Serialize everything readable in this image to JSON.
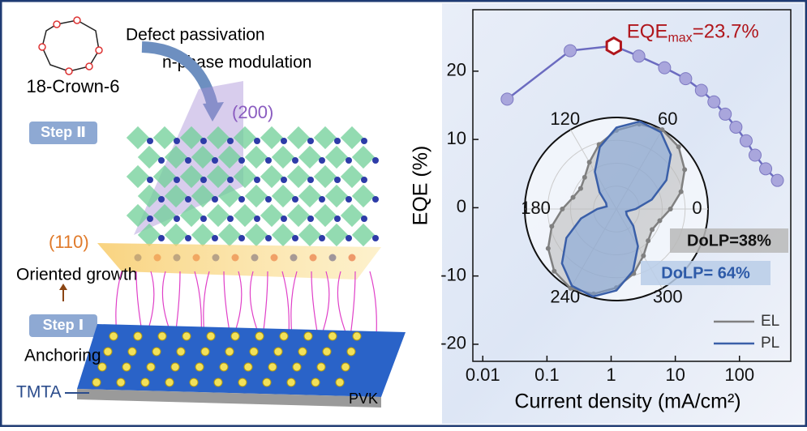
{
  "illustration": {
    "molecule": "18-Crown-6",
    "arrow_top": "Defect passivation",
    "arrow_bottom": "n-phase modulation",
    "step2": "Step Ⅱ",
    "plane200": "(200)",
    "plane110": "(110)",
    "growth": "Oriented growth",
    "step1": "Step Ⅰ",
    "anchoring": "Anchoring",
    "tmta": "TMTA",
    "substrate": "PVK"
  },
  "chart_data": [
    {
      "type": "line",
      "xlabel": "Current density (mA/cm²)",
      "ylabel": "EQE (%)",
      "x": [
        0.024,
        0.23,
        1.1,
        2.7,
        6.8,
        14.5,
        25.5,
        40,
        60,
        88,
        127,
        175,
        256,
        390
      ],
      "values": [
        15.9,
        23.0,
        23.7,
        22.2,
        20.5,
        18.9,
        17.2,
        15.5,
        13.7,
        11.8,
        9.8,
        7.7,
        5.7,
        4.0
      ],
      "color": "#6b6bc0",
      "annotation": {
        "text": "EQE",
        "sub": "max",
        "value_text": "=23.7%",
        "color": "#b0161c"
      },
      "xscale": "log",
      "xlim": [
        0.007,
        630
      ],
      "xticks": [
        0.01,
        0.1,
        1,
        10,
        100
      ],
      "ylim": [
        -22.5,
        29
      ],
      "yticks": [
        -20,
        -10,
        0,
        10,
        20
      ]
    },
    {
      "type": "polar",
      "theta": [
        0,
        15,
        30,
        45,
        60,
        75,
        90,
        105,
        120,
        135,
        150,
        165,
        180,
        195,
        210,
        225,
        240,
        255,
        270,
        285,
        300,
        315,
        330,
        345
      ],
      "rlim": [
        0,
        1
      ],
      "thetaticks": [
        0,
        60,
        120,
        180,
        240,
        300
      ],
      "series": [
        {
          "name": "EL",
          "color": "#808080",
          "values": [
            0.59,
            0.73,
            0.86,
            0.96,
            1.0,
            0.96,
            0.86,
            0.73,
            0.59,
            0.49,
            0.45,
            0.49,
            0.59,
            0.73,
            0.86,
            0.96,
            1.0,
            0.96,
            0.86,
            0.73,
            0.59,
            0.49,
            0.45,
            0.49
          ]
        },
        {
          "name": "PL",
          "color": "#3a5fa8",
          "values": [
            0.21,
            0.4,
            0.63,
            0.84,
            0.97,
            0.99,
            0.89,
            0.7,
            0.47,
            0.26,
            0.13,
            0.11,
            0.21,
            0.4,
            0.63,
            0.84,
            0.97,
            0.99,
            0.89,
            0.7,
            0.47,
            0.26,
            0.13,
            0.11
          ]
        }
      ],
      "annotations": [
        "DoLP=38%",
        "DoLP= 64%"
      ],
      "legend": "lower right"
    }
  ]
}
